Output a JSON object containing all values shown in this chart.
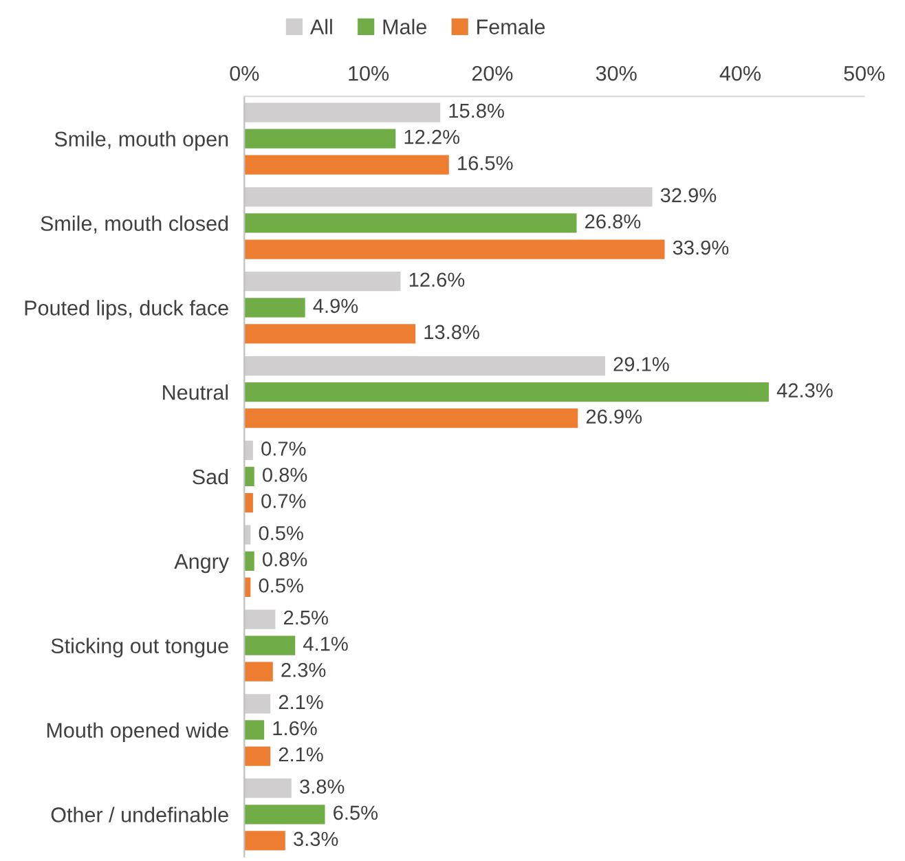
{
  "chart_data": {
    "type": "bar",
    "orientation": "horizontal",
    "categories": [
      "Smile, mouth open",
      "Smile, mouth closed",
      "Pouted lips, duck face",
      "Neutral",
      "Sad",
      "Angry",
      "Sticking out tongue",
      "Mouth opened wide",
      "Other / undefinable"
    ],
    "series": [
      {
        "name": "All",
        "color": "#d0cece",
        "values": [
          15.8,
          32.9,
          12.6,
          29.1,
          0.7,
          0.5,
          2.5,
          2.1,
          3.8
        ],
        "value_labels": [
          "15.8%",
          "32.9%",
          "12.6%",
          "29.1%",
          "0.7%",
          "0.5%",
          "2.5%",
          "2.1%",
          "3.8%"
        ]
      },
      {
        "name": "Male",
        "color": "#70ad47",
        "values": [
          12.2,
          26.8,
          4.9,
          42.3,
          0.8,
          0.8,
          4.1,
          1.6,
          6.5
        ],
        "value_labels": [
          "12.2%",
          "26.8%",
          "4.9%",
          "42.3%",
          "0.8%",
          "0.8%",
          "4.1%",
          "1.6%",
          "6.5%"
        ]
      },
      {
        "name": "Female",
        "color": "#ed7d31",
        "values": [
          16.5,
          33.9,
          13.8,
          26.9,
          0.7,
          0.5,
          2.3,
          2.1,
          3.3
        ],
        "value_labels": [
          "16.5%",
          "33.9%",
          "13.8%",
          "26.9%",
          "0.7%",
          "0.5%",
          "2.3%",
          "2.1%",
          "3.3%"
        ]
      }
    ],
    "xlim": [
      0,
      50
    ],
    "xticks": [
      {
        "value": 0,
        "label": "0%"
      },
      {
        "value": 10,
        "label": "10%"
      },
      {
        "value": 20,
        "label": "20%"
      },
      {
        "value": 30,
        "label": "30%"
      },
      {
        "value": 40,
        "label": "40%"
      },
      {
        "value": 50,
        "label": "50%"
      }
    ],
    "grid": false,
    "legend": "top"
  }
}
